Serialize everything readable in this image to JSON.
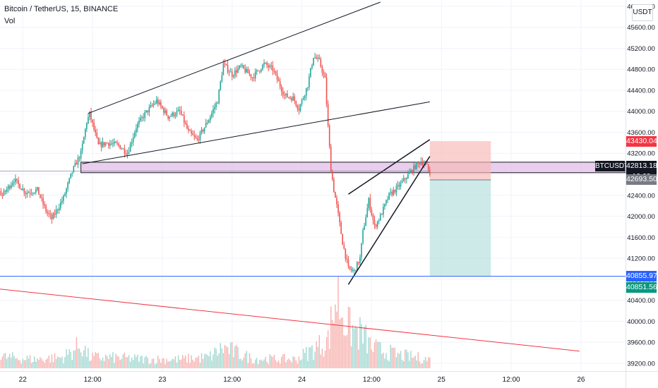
{
  "header": {
    "title": "Bitcoin / TetherUS, 15, BINANCE",
    "volume_label": "Vol",
    "unit_button": "USDT"
  },
  "colors": {
    "up": "#26a69a",
    "down": "#ef5350",
    "grid": "#f0f3fa",
    "zone": "#e1bee7",
    "loss": "#f8b9b6",
    "profit": "#b2dfdb",
    "blue_line": "#2962ff",
    "red_line": "#f23645"
  },
  "chart_data": {
    "type": "candlestick",
    "symbol": "BTCUSDT",
    "interval": "15",
    "exchange": "BINANCE",
    "x_ticks": [
      "22",
      "12:00",
      "23",
      "12:00",
      "24",
      "12:00",
      "25",
      "12:00",
      "26"
    ],
    "y_ticks": [
      39200,
      39600,
      40000,
      40400,
      40800,
      41200,
      41600,
      42000,
      42400,
      42800,
      43200,
      43600,
      44000,
      44400,
      44800,
      45200,
      45600,
      46000
    ],
    "y_range": [
      39050,
      46120
    ],
    "price_labels": {
      "stop": "43430.04",
      "last": "42813.18",
      "countdown": "12:09",
      "entry": "42693.50",
      "target": "40855.97",
      "support": "40851.56"
    },
    "symbol_label": "BTCUSDT",
    "bars_per_day": 96,
    "ohlc_path": [
      [
        0,
        42860
      ],
      [
        6,
        42150
      ],
      [
        12,
        41100
      ],
      [
        18,
        42300
      ],
      [
        24,
        40500
      ],
      [
        30,
        41000
      ],
      [
        34,
        40250
      ],
      [
        38,
        41400
      ],
      [
        44,
        42200
      ],
      [
        52,
        42600
      ],
      [
        58,
        42400
      ],
      [
        66,
        42700
      ],
      [
        74,
        42450
      ],
      [
        82,
        42500
      ],
      [
        88,
        42100
      ],
      [
        92,
        41950
      ],
      [
        100,
        42350
      ],
      [
        106,
        42850
      ],
      [
        112,
        43200
      ],
      [
        116,
        43800
      ],
      [
        118,
        43950
      ],
      [
        124,
        43350
      ],
      [
        130,
        43400
      ],
      [
        138,
        43350
      ],
      [
        144,
        43200
      ],
      [
        150,
        43700
      ],
      [
        156,
        43950
      ],
      [
        164,
        44200
      ],
      [
        172,
        43900
      ],
      [
        180,
        44000
      ],
      [
        186,
        43600
      ],
      [
        192,
        43450
      ],
      [
        200,
        43850
      ],
      [
        206,
        44200
      ],
      [
        210,
        44900
      ],
      [
        216,
        44700
      ],
      [
        222,
        44850
      ],
      [
        230,
        44650
      ],
      [
        238,
        44900
      ],
      [
        244,
        44800
      ],
      [
        252,
        44300
      ],
      [
        258,
        44250
      ],
      [
        262,
        44050
      ],
      [
        268,
        44500
      ],
      [
        272,
        45050
      ],
      [
        276,
        44950
      ],
      [
        280,
        44600
      ],
      [
        282,
        43700
      ],
      [
        284,
        42900
      ],
      [
        286,
        42500
      ],
      [
        288,
        42200
      ],
      [
        292,
        41500
      ],
      [
        296,
        41000
      ],
      [
        300,
        40950
      ],
      [
        304,
        41200
      ],
      [
        306,
        41700
      ],
      [
        310,
        42300
      ],
      [
        314,
        41800
      ],
      [
        318,
        42000
      ],
      [
        324,
        42400
      ],
      [
        330,
        42550
      ],
      [
        336,
        42750
      ],
      [
        342,
        42950
      ],
      [
        346,
        43050
      ],
      [
        350,
        42950
      ],
      [
        352,
        42813
      ]
    ],
    "volume": [
      [
        0,
        0.28
      ],
      [
        10,
        0.18
      ],
      [
        26,
        0.62
      ],
      [
        40,
        0.25
      ],
      [
        60,
        0.15
      ],
      [
        80,
        0.12
      ],
      [
        100,
        0.15
      ],
      [
        112,
        0.32
      ],
      [
        118,
        0.15
      ],
      [
        140,
        0.14
      ],
      [
        160,
        0.12
      ],
      [
        180,
        0.12
      ],
      [
        200,
        0.15
      ],
      [
        210,
        0.28
      ],
      [
        230,
        0.13
      ],
      [
        260,
        0.12
      ],
      [
        282,
        0.38
      ],
      [
        288,
        1.0
      ],
      [
        296,
        0.55
      ],
      [
        306,
        0.45
      ],
      [
        312,
        0.28
      ],
      [
        330,
        0.18
      ],
      [
        352,
        0.12
      ]
    ],
    "drawings": {
      "resistance_zone": [
        42830,
        43030
      ],
      "upper_channel": [
        [
          117,
          43960
        ],
        [
          318,
          46080
        ]
      ],
      "lower_channel": [
        [
          113,
          43000
        ],
        [
          352,
          44180
        ]
      ],
      "wedge_upper": [
        [
          296,
          42420
        ],
        [
          352,
          43460
        ]
      ],
      "wedge_lower": [
        [
          296,
          40700
        ],
        [
          352,
          43140
        ]
      ],
      "support_line": 40856,
      "descending_line": [
        [
          0,
          40780
        ],
        [
          455,
          39430
        ]
      ],
      "position": {
        "start": 352,
        "end": 394,
        "stop": 43430,
        "entry": 42693,
        "target": 40856
      }
    }
  }
}
